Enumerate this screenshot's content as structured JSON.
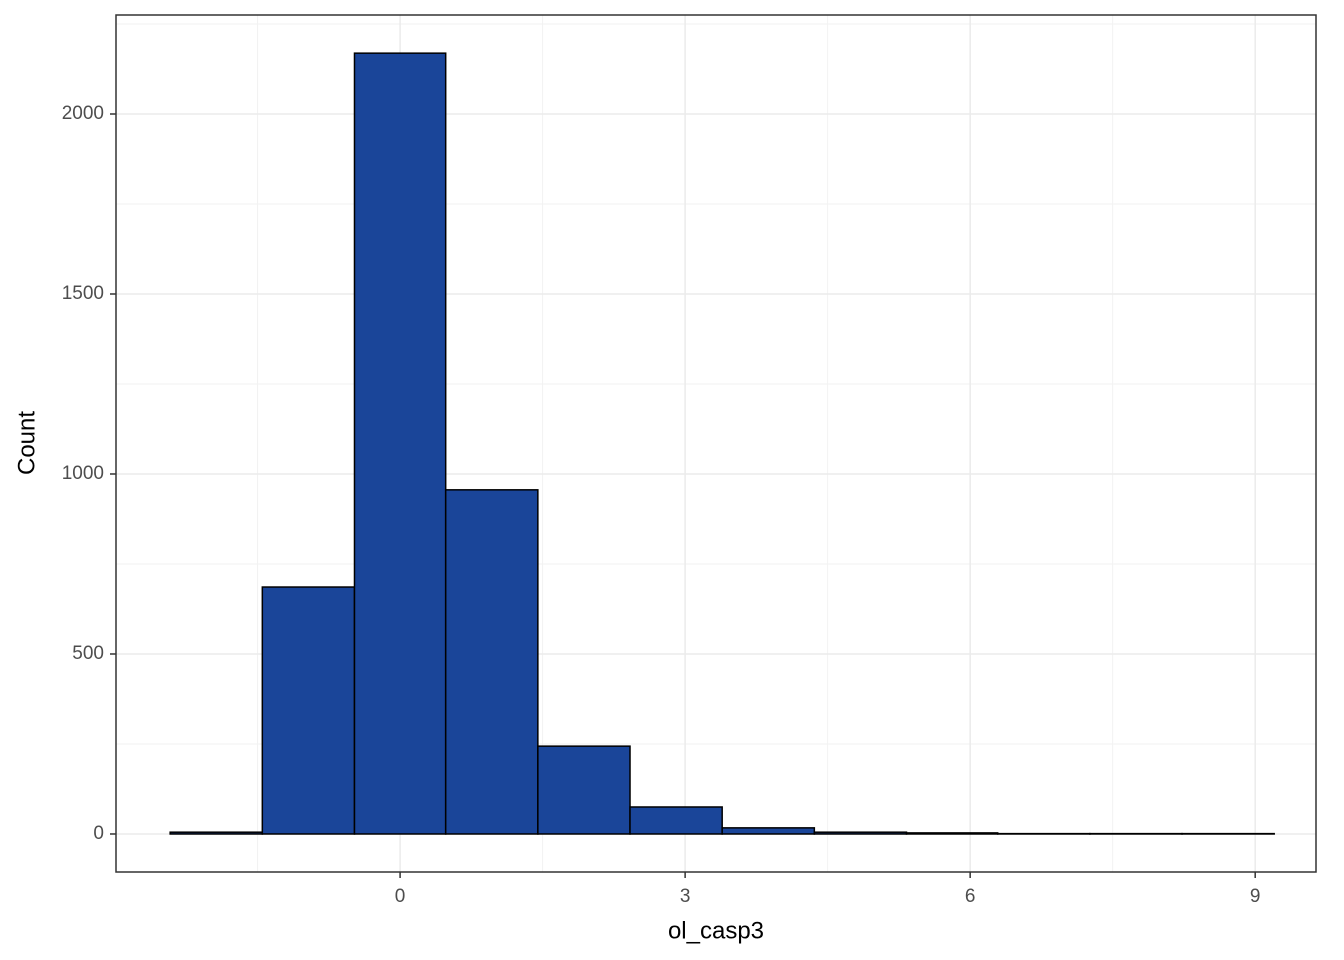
{
  "chart_data": {
    "type": "histogram",
    "x_label": "ol_casp3",
    "y_label": "Count",
    "bins": [
      -2.42,
      -1.45,
      -0.48,
      0.48,
      1.45,
      2.42,
      3.39,
      4.36,
      5.33,
      6.29,
      7.26,
      8.23,
      9.2
    ],
    "counts": [
      5,
      686,
      2169,
      956,
      244,
      75,
      17,
      5,
      3,
      1,
      1,
      1
    ],
    "color": "#1a4599",
    "edge_color": "#000000",
    "xlim": [
      -2.99,
      9.64
    ],
    "xticks": [
      0,
      3,
      6,
      9
    ],
    "ylim": [
      -105.6,
      2275
    ],
    "yticks": [
      0,
      500,
      1000,
      1500,
      2000
    ],
    "grid": true
  }
}
